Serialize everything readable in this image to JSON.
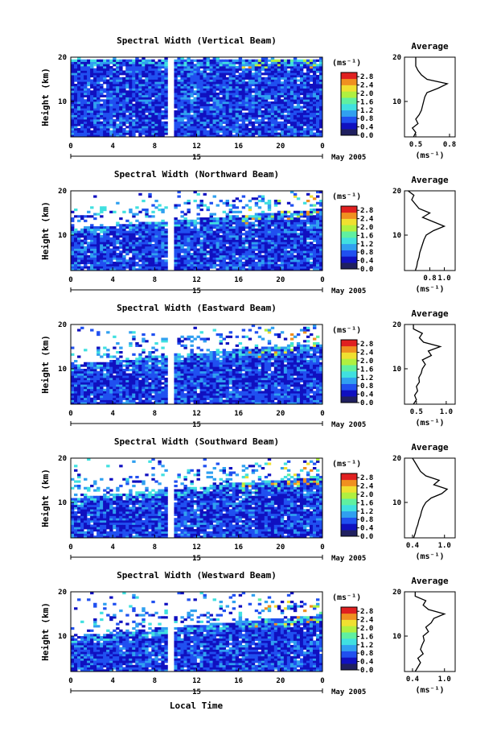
{
  "figure": {
    "ylabel": "Height (km)",
    "xlabel": "Local Time",
    "date_label": "May 2005",
    "day_label": "15",
    "colorbar_unit": "(ms⁻¹)",
    "avg_title": "Average",
    "avg_xlabel": "(ms⁻¹)",
    "colors": {
      "scale": [
        "#202060",
        "#1010c0",
        "#2050f0",
        "#30a0f0",
        "#40e0e0",
        "#60f0a0",
        "#b0f040",
        "#f0e030",
        "#f09020",
        "#e02020"
      ],
      "missing": "#ffffff"
    }
  },
  "chart_data": [
    {
      "type": "heatmap",
      "title": "Spectral Width (Vertical Beam)",
      "xticks": [
        "0",
        "4",
        "8",
        "12",
        "16",
        "20",
        "0"
      ],
      "yticks": [
        "20",
        "10"
      ],
      "xlim": [
        0,
        24
      ],
      "ylim": [
        2,
        20
      ],
      "colorbar_ticks": [
        "2.8",
        "2.4",
        "2.0",
        "1.6",
        "1.2",
        "0.8",
        "0.4",
        "0.0"
      ],
      "colorbar_range": [
        0,
        3.0
      ],
      "data_top_km": [
        19.5,
        19.5
      ],
      "gap_hour": 9.5,
      "average": {
        "xticks": [
          "0.5",
          "0.8"
        ],
        "xlim": [
          0.4,
          0.85
        ],
        "height": [
          2,
          3,
          4,
          5,
          6,
          7,
          8,
          9,
          10,
          11,
          12,
          13,
          14,
          15,
          16,
          17,
          18,
          19,
          20
        ],
        "value": [
          0.48,
          0.5,
          0.47,
          0.52,
          0.5,
          0.53,
          0.55,
          0.56,
          0.57,
          0.58,
          0.6,
          0.7,
          0.78,
          0.6,
          0.55,
          0.52,
          0.5,
          0.5,
          0.5
        ]
      }
    },
    {
      "type": "heatmap",
      "title": "Spectral Width (Northward Beam)",
      "xticks": [
        "0",
        "4",
        "8",
        "12",
        "16",
        "20",
        "0"
      ],
      "yticks": [
        "20",
        "10"
      ],
      "xlim": [
        0,
        24
      ],
      "ylim": [
        2,
        20
      ],
      "colorbar_ticks": [
        "2.8",
        "2.4",
        "2.0",
        "1.6",
        "1.2",
        "0.8",
        "0.4",
        "0.0"
      ],
      "colorbar_range": [
        0,
        3.0
      ],
      "data_top_km": [
        11.5,
        16
      ],
      "gap_hour": 9.5,
      "average": {
        "xticks": [
          "0.8",
          "1.0"
        ],
        "xlim": [
          0.45,
          1.15
        ],
        "height": [
          2,
          3,
          4,
          5,
          6,
          7,
          8,
          9,
          10,
          11,
          12,
          13,
          14,
          15,
          16,
          17,
          18,
          19,
          20
        ],
        "value": [
          0.6,
          0.62,
          0.63,
          0.65,
          0.66,
          0.68,
          0.7,
          0.72,
          0.75,
          0.85,
          1.0,
          0.85,
          0.7,
          0.8,
          0.65,
          0.6,
          0.55,
          0.58,
          0.5
        ]
      }
    },
    {
      "type": "heatmap",
      "title": "Spectral Width (Eastward Beam)",
      "xticks": [
        "0",
        "4",
        "8",
        "12",
        "16",
        "20",
        "0"
      ],
      "yticks": [
        "20",
        "10"
      ],
      "xlim": [
        0,
        24
      ],
      "ylim": [
        2,
        20
      ],
      "colorbar_ticks": [
        "2.8",
        "2.4",
        "2.0",
        "1.6",
        "1.2",
        "0.8",
        "0.4",
        "0.0"
      ],
      "colorbar_range": [
        0,
        3.0
      ],
      "data_top_km": [
        11,
        16
      ],
      "gap_hour": 9.5,
      "average": {
        "xticks": [
          "0.5",
          "1.0"
        ],
        "xlim": [
          0.3,
          1.15
        ],
        "height": [
          2,
          3,
          4,
          5,
          6,
          7,
          8,
          9,
          10,
          11,
          12,
          13,
          14,
          15,
          16,
          17,
          18,
          19,
          20
        ],
        "value": [
          0.45,
          0.5,
          0.47,
          0.52,
          0.5,
          0.55,
          0.54,
          0.58,
          0.6,
          0.65,
          0.6,
          0.75,
          0.7,
          0.9,
          0.62,
          0.55,
          0.6,
          0.45,
          0.45
        ]
      }
    },
    {
      "type": "heatmap",
      "title": "Spectral Width (Southward Beam)",
      "xticks": [
        "0",
        "4",
        "8",
        "12",
        "16",
        "20",
        "0"
      ],
      "yticks": [
        "20",
        "10"
      ],
      "xlim": [
        0,
        24
      ],
      "ylim": [
        2,
        20
      ],
      "colorbar_ticks": [
        "2.8",
        "2.4",
        "2.0",
        "1.6",
        "1.2",
        "0.8",
        "0.4",
        "0.0"
      ],
      "colorbar_range": [
        0,
        3.0
      ],
      "data_top_km": [
        11,
        16
      ],
      "gap_hour": 9.5,
      "average": {
        "xticks": [
          "0.4",
          "1.0"
        ],
        "xlim": [
          0.25,
          1.2
        ],
        "height": [
          2,
          3,
          4,
          5,
          6,
          7,
          8,
          9,
          10,
          11,
          12,
          13,
          14,
          15,
          16,
          17,
          18,
          19,
          20
        ],
        "value": [
          0.42,
          0.45,
          0.47,
          0.5,
          0.52,
          0.55,
          0.57,
          0.6,
          0.65,
          0.75,
          0.95,
          1.05,
          0.8,
          0.9,
          0.65,
          0.55,
          0.5,
          0.45,
          0.4
        ]
      }
    },
    {
      "type": "heatmap",
      "title": "Spectral Width (Westward Beam)",
      "xticks": [
        "0",
        "4",
        "8",
        "12",
        "16",
        "20",
        "0"
      ],
      "yticks": [
        "20",
        "10"
      ],
      "xlim": [
        0,
        24
      ],
      "ylim": [
        2,
        20
      ],
      "colorbar_ticks": [
        "2.8",
        "2.4",
        "2.0",
        "1.6",
        "1.2",
        "0.8",
        "0.4",
        "0.0"
      ],
      "colorbar_range": [
        0,
        3.0
      ],
      "data_top_km": [
        10,
        15
      ],
      "gap_hour": 9.5,
      "average": {
        "xticks": [
          "0.4",
          "1.0"
        ],
        "xlim": [
          0.25,
          1.2
        ],
        "height": [
          2,
          3,
          4,
          5,
          6,
          7,
          8,
          9,
          10,
          11,
          12,
          13,
          14,
          15,
          16,
          17,
          18,
          19,
          20
        ],
        "value": [
          0.45,
          0.5,
          0.55,
          0.5,
          0.6,
          0.55,
          0.58,
          0.62,
          0.6,
          0.7,
          0.65,
          0.75,
          0.8,
          1.0,
          0.7,
          0.6,
          0.65,
          0.45,
          0.45
        ]
      }
    }
  ]
}
